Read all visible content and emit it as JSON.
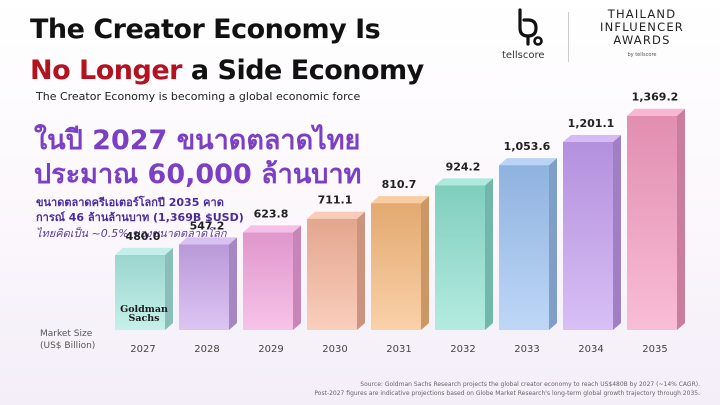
{
  "header": {
    "title_line1": "The Creator Economy Is",
    "title_line2_red": "No Longer",
    "title_line2_black": " a Side Economy",
    "subtitle": "The Creator Economy is becoming a global economic force"
  },
  "thai": {
    "headline_line1": "ในปี 2027 ขนาดตลาดไทย",
    "headline_line2": "ประมาณ 60,000 ล้านบาท",
    "note_line1": "ขนาดตลาดครีเอเตอร์โลกปี 2035 คาด",
    "note_line2": "การณ์ 46 ล้านล้านบาท (1,369B $USD)",
    "note_line3": "ไทยคิดเป็น ~0.5% ของขนาดตลาดโลก"
  },
  "logos": {
    "tellscore": "tellscore",
    "awards_line1": "THAILAND",
    "awards_line2": "INFLUENCER",
    "awards_line3": "AWARDS",
    "awards_by": "by tellscore",
    "goldman_line1": "Goldman",
    "goldman_line2": "Sachs"
  },
  "axis_caption": {
    "line1": "Market Size",
    "line2": "(US$ Billion)"
  },
  "footnotes": {
    "line1": "Source: Goldman Sachs Research projects the global creator economy to reach US$480B by 2027 (~14% CAGR).",
    "line2": "Post-2027 figures are indicative projections based on Globe Market Research's long-term global growth trajectory through 2035."
  },
  "chart_data": {
    "type": "bar",
    "categories": [
      "2027",
      "2028",
      "2029",
      "2030",
      "2031",
      "2032",
      "2033",
      "2034",
      "2035"
    ],
    "values": [
      480.0,
      547.2,
      623.8,
      711.1,
      810.7,
      924.2,
      1053.6,
      1201.1,
      1369.2
    ],
    "value_labels": [
      "480.0",
      "547.2",
      "623.8",
      "711.1",
      "810.7",
      "924.2",
      "1,053.6",
      "1,201.1",
      "1,369.2"
    ],
    "ylabel": "Market Size (US$ Billion)",
    "grid": false,
    "bar_style": "3d",
    "colors": [
      "#a8e8e0",
      "#c9a6ec",
      "#f3a3dd",
      "#f7b49a",
      "#f7b87a",
      "#8be0cf",
      "#9bc2f2",
      "#c39cf0",
      "#f59ac0"
    ]
  }
}
